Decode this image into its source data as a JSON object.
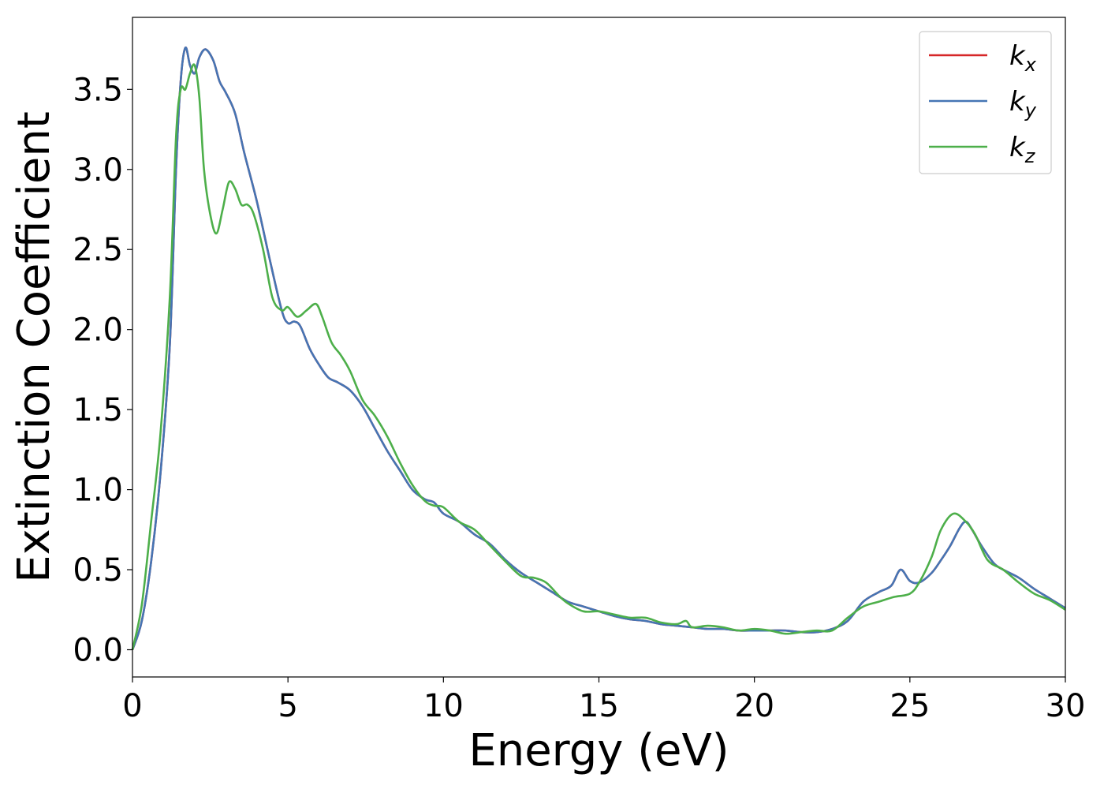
{
  "chart_data": {
    "type": "line",
    "title": "",
    "xlabel": "Energy (eV)",
    "ylabel": "Extinction Coefficient",
    "xlim": [
      0,
      30
    ],
    "ylim": [
      -0.17,
      3.95
    ],
    "xticks": [
      0,
      5,
      10,
      15,
      20,
      25,
      30
    ],
    "xtick_labels": [
      "0",
      "5",
      "10",
      "15",
      "20",
      "25",
      "30"
    ],
    "yticks": [
      0.0,
      0.5,
      1.0,
      1.5,
      2.0,
      2.5,
      3.0,
      3.5
    ],
    "ytick_labels": [
      "0.0",
      "0.5",
      "1.0",
      "1.5",
      "2.0",
      "2.5",
      "3.0",
      "3.5"
    ],
    "grid": false,
    "legend": "top-right",
    "series": [
      {
        "name": "k",
        "sub": "x",
        "color": "#d62728",
        "x": [
          0,
          0.3,
          0.6,
          0.9,
          1.2,
          1.4,
          1.55,
          1.7,
          1.85,
          2.0,
          2.15,
          2.35,
          2.6,
          2.8,
          3.0,
          3.3,
          3.6,
          4.0,
          4.4,
          4.8,
          5.0,
          5.2,
          5.4,
          5.7,
          6.0,
          6.3,
          6.6,
          7.0,
          7.4,
          7.8,
          8.2,
          8.6,
          9.0,
          9.4,
          9.7,
          10.0,
          10.5,
          11.0,
          11.5,
          12.0,
          12.5,
          13.0,
          13.5,
          14.0,
          14.5,
          15.0,
          15.5,
          16.0,
          16.5,
          17.0,
          17.5,
          18.0,
          18.5,
          19.0,
          19.5,
          20.0,
          20.5,
          21.0,
          21.5,
          22.0,
          22.5,
          23.0,
          23.5,
          24.0,
          24.4,
          24.7,
          25.0,
          25.3,
          25.7,
          26.0,
          26.3,
          26.6,
          26.8,
          27.0,
          27.3,
          27.7,
          28.0,
          28.5,
          29.0,
          29.5,
          30.0
        ],
        "y": [
          0.0,
          0.18,
          0.55,
          1.1,
          1.9,
          3.0,
          3.55,
          3.76,
          3.65,
          3.6,
          3.7,
          3.75,
          3.68,
          3.55,
          3.48,
          3.35,
          3.1,
          2.8,
          2.45,
          2.12,
          2.04,
          2.05,
          2.02,
          1.88,
          1.78,
          1.7,
          1.67,
          1.62,
          1.52,
          1.38,
          1.24,
          1.12,
          1.0,
          0.94,
          0.92,
          0.85,
          0.8,
          0.72,
          0.66,
          0.56,
          0.48,
          0.42,
          0.36,
          0.3,
          0.27,
          0.24,
          0.21,
          0.19,
          0.18,
          0.16,
          0.15,
          0.14,
          0.13,
          0.13,
          0.12,
          0.12,
          0.12,
          0.12,
          0.11,
          0.11,
          0.13,
          0.18,
          0.3,
          0.36,
          0.4,
          0.5,
          0.43,
          0.42,
          0.48,
          0.56,
          0.65,
          0.76,
          0.8,
          0.75,
          0.65,
          0.54,
          0.5,
          0.45,
          0.38,
          0.32,
          0.26
        ]
      },
      {
        "name": "k",
        "sub": "y",
        "color": "#4575b4",
        "x": [
          0,
          0.3,
          0.6,
          0.9,
          1.2,
          1.4,
          1.55,
          1.7,
          1.85,
          2.0,
          2.15,
          2.35,
          2.6,
          2.8,
          3.0,
          3.3,
          3.6,
          4.0,
          4.4,
          4.8,
          5.0,
          5.2,
          5.4,
          5.7,
          6.0,
          6.3,
          6.6,
          7.0,
          7.4,
          7.8,
          8.2,
          8.6,
          9.0,
          9.4,
          9.7,
          10.0,
          10.5,
          11.0,
          11.5,
          12.0,
          12.5,
          13.0,
          13.5,
          14.0,
          14.5,
          15.0,
          15.5,
          16.0,
          16.5,
          17.0,
          17.5,
          18.0,
          18.5,
          19.0,
          19.5,
          20.0,
          20.5,
          21.0,
          21.5,
          22.0,
          22.5,
          23.0,
          23.5,
          24.0,
          24.4,
          24.7,
          25.0,
          25.3,
          25.7,
          26.0,
          26.3,
          26.6,
          26.8,
          27.0,
          27.3,
          27.7,
          28.0,
          28.5,
          29.0,
          29.5,
          30.0
        ],
        "y": [
          0.0,
          0.18,
          0.55,
          1.1,
          1.9,
          3.0,
          3.55,
          3.76,
          3.65,
          3.6,
          3.7,
          3.75,
          3.68,
          3.55,
          3.48,
          3.35,
          3.1,
          2.8,
          2.45,
          2.12,
          2.04,
          2.05,
          2.02,
          1.88,
          1.78,
          1.7,
          1.67,
          1.62,
          1.52,
          1.38,
          1.24,
          1.12,
          1.0,
          0.94,
          0.92,
          0.85,
          0.8,
          0.72,
          0.66,
          0.56,
          0.48,
          0.42,
          0.36,
          0.3,
          0.27,
          0.24,
          0.21,
          0.19,
          0.18,
          0.16,
          0.15,
          0.14,
          0.13,
          0.13,
          0.12,
          0.12,
          0.12,
          0.12,
          0.11,
          0.11,
          0.13,
          0.18,
          0.3,
          0.36,
          0.4,
          0.5,
          0.43,
          0.42,
          0.48,
          0.56,
          0.65,
          0.76,
          0.8,
          0.75,
          0.65,
          0.54,
          0.5,
          0.45,
          0.38,
          0.32,
          0.26
        ]
      },
      {
        "name": "k",
        "sub": "z",
        "color": "#4daf4a",
        "x": [
          0,
          0.3,
          0.6,
          0.9,
          1.2,
          1.4,
          1.55,
          1.7,
          1.85,
          2.0,
          2.15,
          2.3,
          2.5,
          2.7,
          2.9,
          3.1,
          3.3,
          3.5,
          3.7,
          3.9,
          4.2,
          4.5,
          4.8,
          5.0,
          5.3,
          5.6,
          5.9,
          6.1,
          6.4,
          6.7,
          7.0,
          7.4,
          7.8,
          8.2,
          8.6,
          9.0,
          9.4,
          9.7,
          10.0,
          10.5,
          11.0,
          11.5,
          12.0,
          12.5,
          12.9,
          13.3,
          13.7,
          14.0,
          14.5,
          15.0,
          15.5,
          16.0,
          16.5,
          17.0,
          17.5,
          17.8,
          18.0,
          18.5,
          19.0,
          19.5,
          20.0,
          20.5,
          21.0,
          21.5,
          22.0,
          22.5,
          23.0,
          23.5,
          24.0,
          24.5,
          25.0,
          25.3,
          25.7,
          26.0,
          26.4,
          26.8,
          27.1,
          27.5,
          28.0,
          28.5,
          29.0,
          29.5,
          30.0
        ],
        "y": [
          0.0,
          0.28,
          0.8,
          1.35,
          2.2,
          3.2,
          3.5,
          3.5,
          3.6,
          3.65,
          3.45,
          3.0,
          2.72,
          2.6,
          2.75,
          2.92,
          2.88,
          2.78,
          2.78,
          2.72,
          2.5,
          2.2,
          2.12,
          2.14,
          2.08,
          2.12,
          2.16,
          2.08,
          1.92,
          1.84,
          1.74,
          1.56,
          1.46,
          1.33,
          1.17,
          1.03,
          0.93,
          0.9,
          0.89,
          0.8,
          0.75,
          0.65,
          0.55,
          0.46,
          0.45,
          0.42,
          0.34,
          0.29,
          0.24,
          0.24,
          0.22,
          0.2,
          0.2,
          0.17,
          0.16,
          0.18,
          0.14,
          0.15,
          0.14,
          0.12,
          0.13,
          0.12,
          0.1,
          0.11,
          0.12,
          0.12,
          0.2,
          0.27,
          0.3,
          0.33,
          0.35,
          0.42,
          0.58,
          0.75,
          0.85,
          0.8,
          0.72,
          0.56,
          0.5,
          0.42,
          0.35,
          0.31,
          0.25
        ]
      }
    ]
  }
}
